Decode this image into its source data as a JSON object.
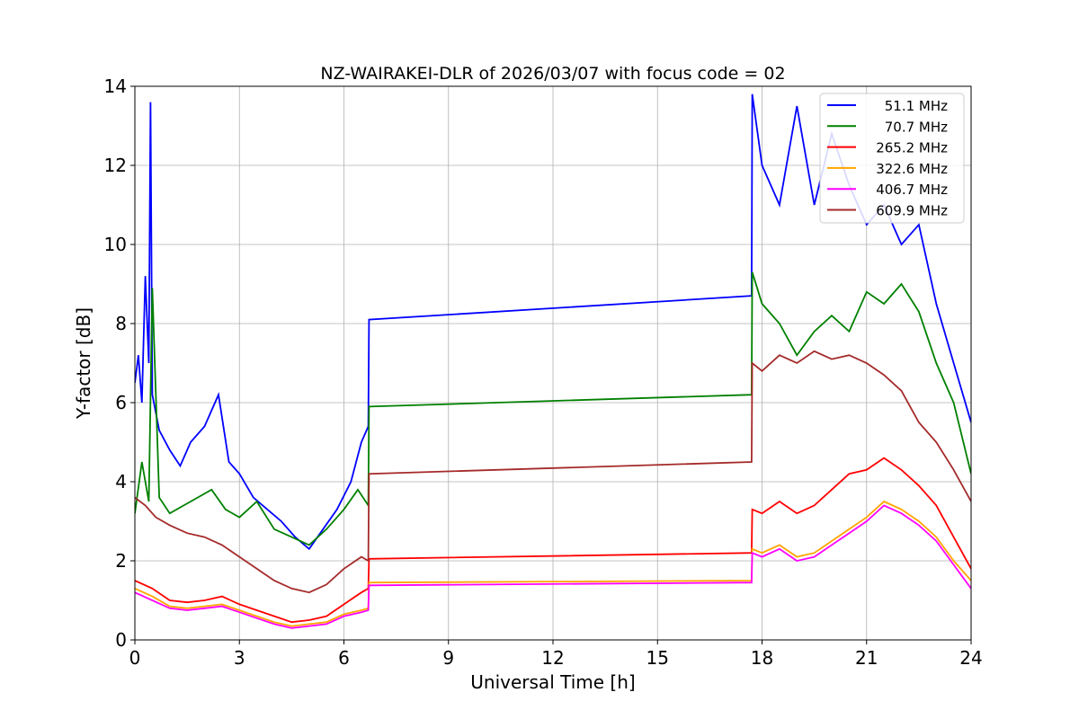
{
  "chart_data": {
    "type": "line",
    "title": "NZ-WAIRAKEI-DLR of 2026/03/07 with focus code = 02",
    "xlabel": "Universal Time [h]",
    "ylabel": "Y-factor [dB]",
    "xlim": [
      0,
      24
    ],
    "ylim": [
      0,
      14
    ],
    "xticks": [
      0,
      3,
      6,
      9,
      12,
      15,
      18,
      21,
      24
    ],
    "yticks": [
      0,
      2,
      4,
      6,
      8,
      10,
      12,
      14
    ],
    "grid": true,
    "legend_position": "top-right",
    "series": [
      {
        "name": "51.1 MHz",
        "color": "#0000ff",
        "x": [
          0.0,
          0.1,
          0.2,
          0.3,
          0.4,
          0.45,
          0.5,
          0.7,
          1.0,
          1.3,
          1.6,
          2.0,
          2.4,
          2.7,
          3.0,
          3.4,
          3.8,
          4.2,
          4.6,
          5.0,
          5.4,
          5.8,
          6.2,
          6.5,
          6.7,
          6.72,
          17.7,
          17.72,
          18.0,
          18.5,
          19.0,
          19.5,
          20.0,
          20.5,
          21.0,
          21.5,
          22.0,
          22.5,
          23.0,
          23.5,
          24.0
        ],
        "values": [
          6.5,
          7.2,
          6.0,
          9.2,
          7.0,
          13.6,
          6.2,
          5.3,
          4.8,
          4.4,
          5.0,
          5.4,
          6.2,
          4.5,
          4.2,
          3.6,
          3.3,
          3.0,
          2.6,
          2.3,
          2.8,
          3.3,
          4.0,
          5.0,
          5.4,
          8.1,
          8.7,
          13.8,
          12.0,
          11.0,
          13.5,
          11.0,
          12.8,
          11.5,
          10.5,
          11.0,
          10.0,
          10.5,
          8.5,
          7.0,
          5.5
        ]
      },
      {
        "name": "70.7 MHz",
        "color": "#008000",
        "x": [
          0.0,
          0.2,
          0.4,
          0.5,
          0.7,
          1.0,
          1.4,
          1.8,
          2.2,
          2.6,
          3.0,
          3.5,
          4.0,
          4.5,
          5.0,
          5.5,
          6.0,
          6.4,
          6.7,
          6.72,
          17.7,
          17.72,
          18.0,
          18.5,
          19.0,
          19.5,
          20.0,
          20.5,
          21.0,
          21.5,
          22.0,
          22.5,
          23.0,
          23.5,
          24.0
        ],
        "values": [
          3.2,
          4.5,
          3.5,
          8.9,
          3.6,
          3.2,
          3.4,
          3.6,
          3.8,
          3.3,
          3.1,
          3.5,
          2.8,
          2.6,
          2.4,
          2.8,
          3.3,
          3.8,
          3.4,
          5.9,
          6.2,
          9.3,
          8.5,
          8.0,
          7.2,
          7.8,
          8.2,
          7.8,
          8.8,
          8.5,
          9.0,
          8.3,
          7.0,
          6.0,
          4.2
        ]
      },
      {
        "name": "265.2 MHz",
        "color": "#ff0000",
        "x": [
          0.0,
          0.5,
          1.0,
          1.5,
          2.0,
          2.5,
          3.0,
          3.5,
          4.0,
          4.5,
          5.0,
          5.5,
          6.0,
          6.5,
          6.7,
          6.72,
          17.7,
          17.72,
          18.0,
          18.5,
          19.0,
          19.5,
          20.0,
          20.5,
          21.0,
          21.5,
          22.0,
          22.5,
          23.0,
          23.5,
          24.0
        ],
        "values": [
          1.5,
          1.3,
          1.0,
          0.95,
          1.0,
          1.1,
          0.9,
          0.75,
          0.6,
          0.45,
          0.5,
          0.6,
          0.9,
          1.2,
          1.3,
          2.05,
          2.2,
          3.3,
          3.2,
          3.5,
          3.2,
          3.4,
          3.8,
          4.2,
          4.3,
          4.6,
          4.3,
          3.9,
          3.4,
          2.6,
          1.8
        ]
      },
      {
        "name": "322.6 MHz",
        "color": "#ffa500",
        "x": [
          0.0,
          0.5,
          1.0,
          1.5,
          2.0,
          2.5,
          3.0,
          3.5,
          4.0,
          4.5,
          5.0,
          5.5,
          6.0,
          6.5,
          6.7,
          6.72,
          17.7,
          17.72,
          18.0,
          18.5,
          19.0,
          19.5,
          20.0,
          20.5,
          21.0,
          21.5,
          22.0,
          22.5,
          23.0,
          23.5,
          24.0
        ],
        "values": [
          1.3,
          1.1,
          0.85,
          0.8,
          0.85,
          0.9,
          0.75,
          0.6,
          0.45,
          0.35,
          0.4,
          0.45,
          0.65,
          0.75,
          0.8,
          1.45,
          1.5,
          2.3,
          2.2,
          2.4,
          2.1,
          2.2,
          2.5,
          2.8,
          3.1,
          3.5,
          3.3,
          3.0,
          2.6,
          2.0,
          1.5
        ]
      },
      {
        "name": "406.7 MHz",
        "color": "#ff00ff",
        "x": [
          0.0,
          0.5,
          1.0,
          1.5,
          2.0,
          2.5,
          3.0,
          3.5,
          4.0,
          4.5,
          5.0,
          5.5,
          6.0,
          6.5,
          6.7,
          6.72,
          17.7,
          17.72,
          18.0,
          18.5,
          19.0,
          19.5,
          20.0,
          20.5,
          21.0,
          21.5,
          22.0,
          22.5,
          23.0,
          23.5,
          24.0
        ],
        "values": [
          1.2,
          1.0,
          0.8,
          0.75,
          0.8,
          0.85,
          0.7,
          0.55,
          0.4,
          0.3,
          0.35,
          0.4,
          0.6,
          0.7,
          0.75,
          1.38,
          1.45,
          2.2,
          2.1,
          2.3,
          2.0,
          2.1,
          2.4,
          2.7,
          3.0,
          3.4,
          3.2,
          2.9,
          2.5,
          1.9,
          1.3
        ]
      },
      {
        "name": "609.9 MHz",
        "color": "#a52a2a",
        "x": [
          0.0,
          0.3,
          0.6,
          1.0,
          1.5,
          2.0,
          2.5,
          3.0,
          3.5,
          4.0,
          4.5,
          5.0,
          5.5,
          6.0,
          6.5,
          6.7,
          6.72,
          17.7,
          17.72,
          18.0,
          18.5,
          19.0,
          19.5,
          20.0,
          20.5,
          21.0,
          21.5,
          22.0,
          22.5,
          23.0,
          23.5,
          24.0
        ],
        "values": [
          3.6,
          3.4,
          3.1,
          2.9,
          2.7,
          2.6,
          2.4,
          2.1,
          1.8,
          1.5,
          1.3,
          1.2,
          1.4,
          1.8,
          2.1,
          2.0,
          4.2,
          4.5,
          7.0,
          6.8,
          7.2,
          7.0,
          7.3,
          7.1,
          7.2,
          7.0,
          6.7,
          6.3,
          5.5,
          5.0,
          4.3,
          3.5
        ]
      }
    ]
  }
}
